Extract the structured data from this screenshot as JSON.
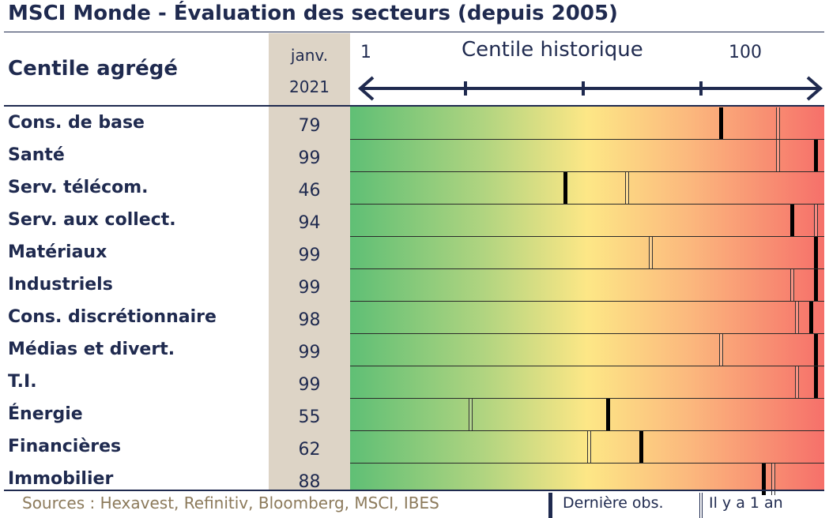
{
  "title": "MSCI Monde - Évaluation des secteurs (depuis 2005)",
  "header": {
    "column_label": "Centile agrégé",
    "date_line1": "janv.",
    "date_line2": "2021",
    "axis_label": "Centile historique",
    "axis_min": "1",
    "axis_max": "100"
  },
  "footer": {
    "sources": "Sources : Hexavest, Refinitiv, Bloomberg, MSCI, IBES",
    "legend_last": "Dernière obs.",
    "legend_year": "Il y a 1 an"
  },
  "colors": {
    "text": "#1f2a4f",
    "low": "#5fbf75",
    "mid": "#fde786",
    "high": "#f6706a",
    "date_column": "#ddd4c6"
  },
  "chart_data": {
    "type": "table",
    "axis_range": [
      1,
      100
    ],
    "columns": [
      "Centile agrégé",
      "janv. 2021",
      "Dernière obs.",
      "Il y a 1 an"
    ],
    "rows": [
      {
        "sector": "Cons. de base",
        "value": 79,
        "last_obs": 79,
        "one_year_ago": 91
      },
      {
        "sector": "Santé",
        "value": 99,
        "last_obs": 99,
        "one_year_ago": 91
      },
      {
        "sector": "Serv. télécom.",
        "value": 46,
        "last_obs": 46,
        "one_year_ago": 59
      },
      {
        "sector": "Serv. aux collect.",
        "value": 94,
        "last_obs": 94,
        "one_year_ago": 99
      },
      {
        "sector": "Matériaux",
        "value": 99,
        "last_obs": 99,
        "one_year_ago": 64
      },
      {
        "sector": "Industriels",
        "value": 99,
        "last_obs": 99,
        "one_year_ago": 94
      },
      {
        "sector": "Cons. discrétionnaire",
        "value": 98,
        "last_obs": 98,
        "one_year_ago": 95
      },
      {
        "sector": "Médias et divert.",
        "value": 99,
        "last_obs": 99,
        "one_year_ago": 79
      },
      {
        "sector": "T.I.",
        "value": 99,
        "last_obs": 99,
        "one_year_ago": 95
      },
      {
        "sector": "Énergie",
        "value": 55,
        "last_obs": 55,
        "one_year_ago": 26
      },
      {
        "sector": "Financières",
        "value": 62,
        "last_obs": 62,
        "one_year_ago": 51
      },
      {
        "sector": "Immobilier",
        "value": 88,
        "last_obs": 88,
        "one_year_ago": 90
      }
    ]
  }
}
